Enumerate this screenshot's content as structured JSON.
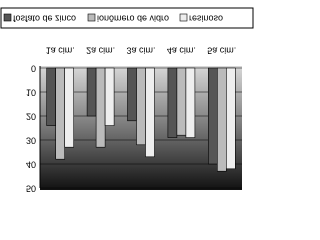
{
  "chart_data": {
    "type": "bar",
    "flipped_vertically": true,
    "categories": [
      "1a cim.",
      "2a cim.",
      "3a cim.",
      "4a cim.",
      "5a cim."
    ],
    "series": [
      {
        "name": "fosfato de zinco",
        "color": "#555555",
        "values": [
          24,
          20,
          22,
          29,
          40
        ]
      },
      {
        "name": "ionômero de vidro",
        "color": "#bbbbbb",
        "values": [
          38,
          33,
          32,
          28,
          43
        ]
      },
      {
        "name": "resinoso",
        "color": "#eeeeee",
        "values": [
          33,
          24,
          37,
          29,
          42
        ]
      }
    ],
    "ylim": [
      0,
      50
    ],
    "yticks": [
      0,
      10,
      20,
      30,
      40,
      50
    ],
    "grid": true,
    "legend": "top"
  }
}
